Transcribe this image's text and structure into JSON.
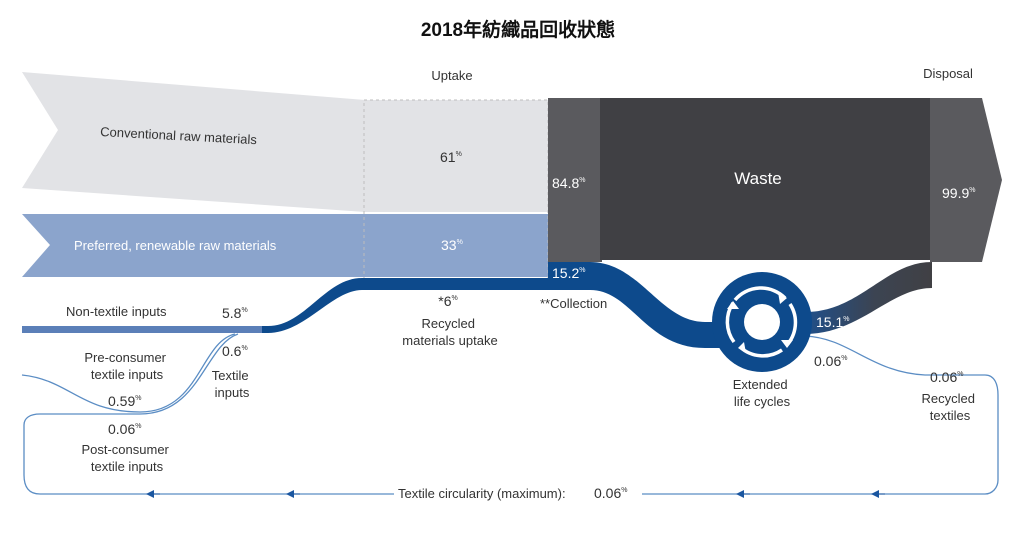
{
  "title": "2018年紡織品回收狀態",
  "headers": {
    "uptake": "Uptake",
    "disposal": "Disposal"
  },
  "inputs": {
    "conventional": {
      "label": "Conventional raw materials",
      "value": "61"
    },
    "renewable": {
      "label": "Preferred, renewable raw materials",
      "value": "33"
    },
    "non_textile": {
      "label": "Non-textile inputs",
      "value": "5.8"
    },
    "textile": {
      "value": "0.6",
      "label_lines": [
        "Textile",
        "inputs"
      ]
    },
    "pre_consumer": {
      "label_lines": [
        "Pre-consumer",
        "textile inputs"
      ],
      "value": "0.59"
    },
    "post_consumer": {
      "value": "0.06",
      "label_lines": [
        "Post-consumer",
        "textile inputs"
      ]
    }
  },
  "recycled_uptake": {
    "value": "*6",
    "label_lines": [
      "Recycled",
      "materials uptake"
    ]
  },
  "flows": {
    "landfill_share": "84.8",
    "waste_label": "Waste",
    "disposal_total": "99.9",
    "collection_value": "15.2",
    "collection_label": "**Collection",
    "extended_value": "15.1",
    "extended_loss": "0.06",
    "extended_label_lines": [
      "Extended",
      "life cycles"
    ],
    "recycled_textiles_value": "0.06",
    "recycled_textiles_label_lines": [
      "Recycled",
      "textiles"
    ]
  },
  "circularity": {
    "label": "Textile circularity (maximum):",
    "value": "0.06"
  },
  "percent_sign": "%",
  "colors": {
    "light_grey": "#e2e3e6",
    "light_blue": "#8ba4cc",
    "mid_grey": "#5a5a5e",
    "dark_grey": "#404044",
    "navy": "#0d4a8c",
    "line_blue": "#5b8dc4"
  }
}
